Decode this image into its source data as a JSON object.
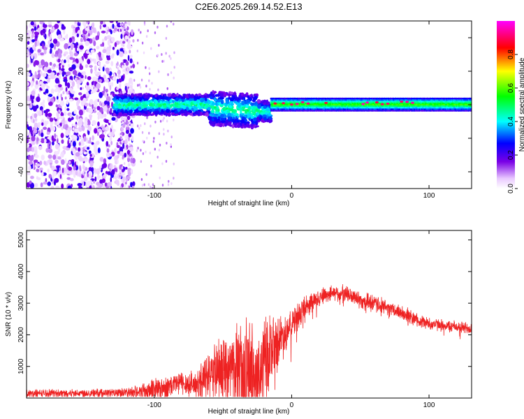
{
  "chart_data": [
    {
      "type": "heatmap",
      "title": "C2E6.2025.269.14.52.E13",
      "xlabel": "Height of straight line (km)",
      "ylabel": "Frequency (Hz)",
      "xlim": [
        -193,
        131
      ],
      "ylim": [
        -50,
        50
      ],
      "xticks": [
        -100,
        0,
        100
      ],
      "yticks": [
        -40,
        -20,
        0,
        20,
        40
      ],
      "colorbar": {
        "label": "Normalized spectral amplitude",
        "range": [
          0.0,
          1.0
        ],
        "ticks": [
          0.0,
          0.2,
          0.4,
          0.6,
          0.8
        ],
        "colormap": [
          "#ffffff",
          "#e9c9ff",
          "#7a00e6",
          "#0000ff",
          "#00ffff",
          "#00ff00",
          "#ffff00",
          "#ff0000",
          "#ff00ff"
        ]
      },
      "description_regions": [
        {
          "x_range": [
            -193,
            -115
          ],
          "freq_range": [
            -50,
            50
          ],
          "amplitude": "scattered low (0.05-0.25)"
        },
        {
          "x_range": [
            -130,
            -15
          ],
          "freq_range": [
            -12,
            12
          ],
          "amplitude": "band 0.2-0.5 centered near 0 Hz, broadening downward around -40 km"
        },
        {
          "x_range": [
            -15,
            131
          ],
          "freq_range": [
            -3,
            4
          ],
          "amplitude": "narrow band 0.4-0.6 with peaks near 0.95 at ~-10, 0, 8, 25, 60, 80, 88 km"
        }
      ]
    },
    {
      "type": "line",
      "title": "",
      "xlabel": "Height of straight line (km)",
      "ylabel": "SNR (10 * v/v)",
      "xlim": [
        -193,
        131
      ],
      "ylim": [
        0,
        5300
      ],
      "xticks": [
        -100,
        0,
        100
      ],
      "yticks": [
        1000,
        2000,
        3000,
        4000,
        5000
      ],
      "series": [
        {
          "name": "SNR",
          "color": "#ee2222",
          "envelope": {
            "x": [
              -193,
              -160,
              -130,
              -115,
              -100,
              -90,
              -80,
              -70,
              -60,
              -50,
              -40,
              -35,
              -30,
              -25,
              -20,
              -15,
              -10,
              0,
              10,
              20,
              30,
              40,
              50,
              60,
              70,
              80,
              90,
              100,
              110,
              120,
              131
            ],
            "base": [
              150,
              160,
              170,
              200,
              300,
              350,
              500,
              400,
              700,
              900,
              1000,
              600,
              1100,
              400,
              1200,
              1500,
              1800,
              2300,
              2900,
              3200,
              3350,
              3300,
              3100,
              3000,
              2850,
              2700,
              2500,
              2350,
              2300,
              2250,
              2200
            ],
            "spread": [
              140,
              150,
              160,
              200,
              450,
              500,
              450,
              500,
              900,
              1200,
              1500,
              2200,
              1700,
              2000,
              1600,
              1400,
              1000,
              550,
              450,
              350,
              300,
              300,
              300,
              300,
              280,
              280,
              250,
              230,
              220,
              220,
              230
            ]
          }
        }
      ]
    }
  ]
}
